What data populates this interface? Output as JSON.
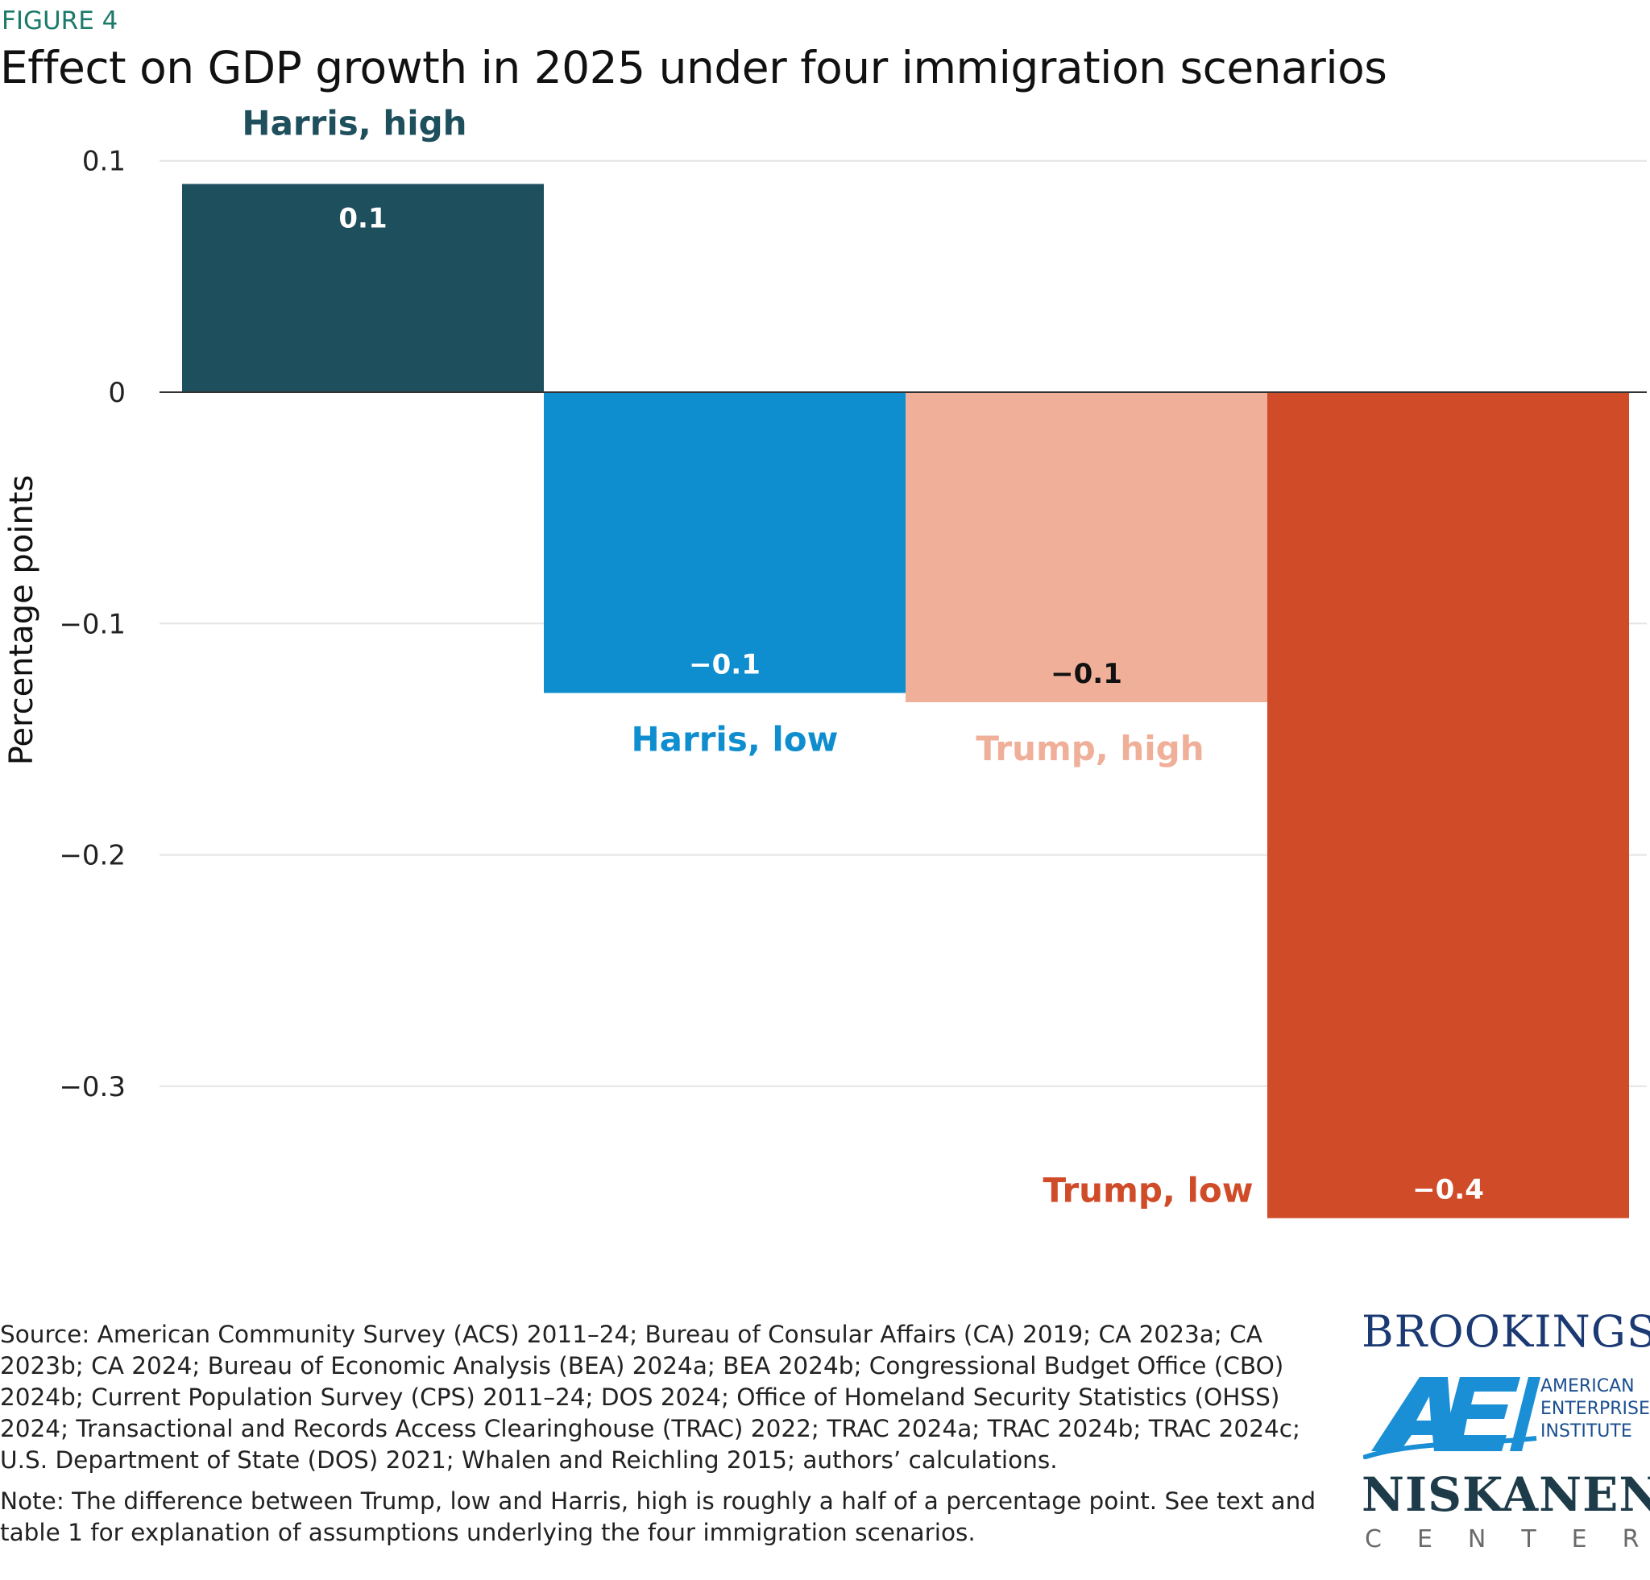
{
  "figure_label": "FIGURE 4",
  "title": "Effect on GDP growth in 2025 under four immigration scenarios",
  "chart_data": {
    "type": "bar",
    "title": "Effect on GDP growth in 2025 under four immigration scenarios",
    "xlabel": "",
    "ylabel": "Percentage points",
    "ylim": [
      -0.36,
      0.1
    ],
    "yticks": [
      0.1,
      0,
      -0.1,
      -0.2,
      -0.3
    ],
    "ytick_labels": [
      "0.1",
      "0",
      "−0.1",
      "−0.2",
      "−0.3"
    ],
    "grid": true,
    "categories": [
      "Harris, high",
      "Harris, low",
      "Trump, high",
      "Trump, low"
    ],
    "values": [
      0.09,
      -0.13,
      -0.134,
      -0.357
    ],
    "value_labels": [
      "0.1",
      "−0.1",
      "−0.1",
      "−0.4"
    ],
    "colors": [
      "#1e4f5c",
      "#0f8ecf",
      "#f0af98",
      "#d04b28"
    ],
    "label_colors": [
      "#1e4f5c",
      "#0f8ecf",
      "#f0af98",
      "#d04b28"
    ],
    "value_label_colors": [
      "#ffffff",
      "#ffffff",
      "#111111",
      "#ffffff"
    ]
  },
  "notes": {
    "source": "Source: American Community Survey (ACS) 2011–24; Bureau of Consular Affairs (CA) 2019; CA 2023a; CA 2023b; CA 2024; Bureau of Economic Analysis (BEA) 2024a; BEA 2024b; Congressional Budget Office (CBO) 2024b; Current Population Survey (CPS) 2011–24; DOS 2024; Office of Homeland Security Statistics (OHSS) 2024; Transactional and Records Access Clearinghouse (TRAC) 2022; TRAC 2024a; TRAC 2024b; TRAC 2024c; U.S. Department of State (DOS) 2021; Whalen and Reichling 2015; authors’ calculations.",
    "note": "Note: The difference between Trump, low and Harris, high is roughly a half of a percentage point. See text and table 1 for explanation of assumptions underlying the four immigration scenarios."
  },
  "logos": {
    "brookings": "BROOKINGS",
    "aei_line1": "AMERICAN",
    "aei_line2": "ENTERPRISE",
    "aei_line3": "INSTITUTE",
    "niskanen": "NISKANEN",
    "center": "CENTER"
  }
}
